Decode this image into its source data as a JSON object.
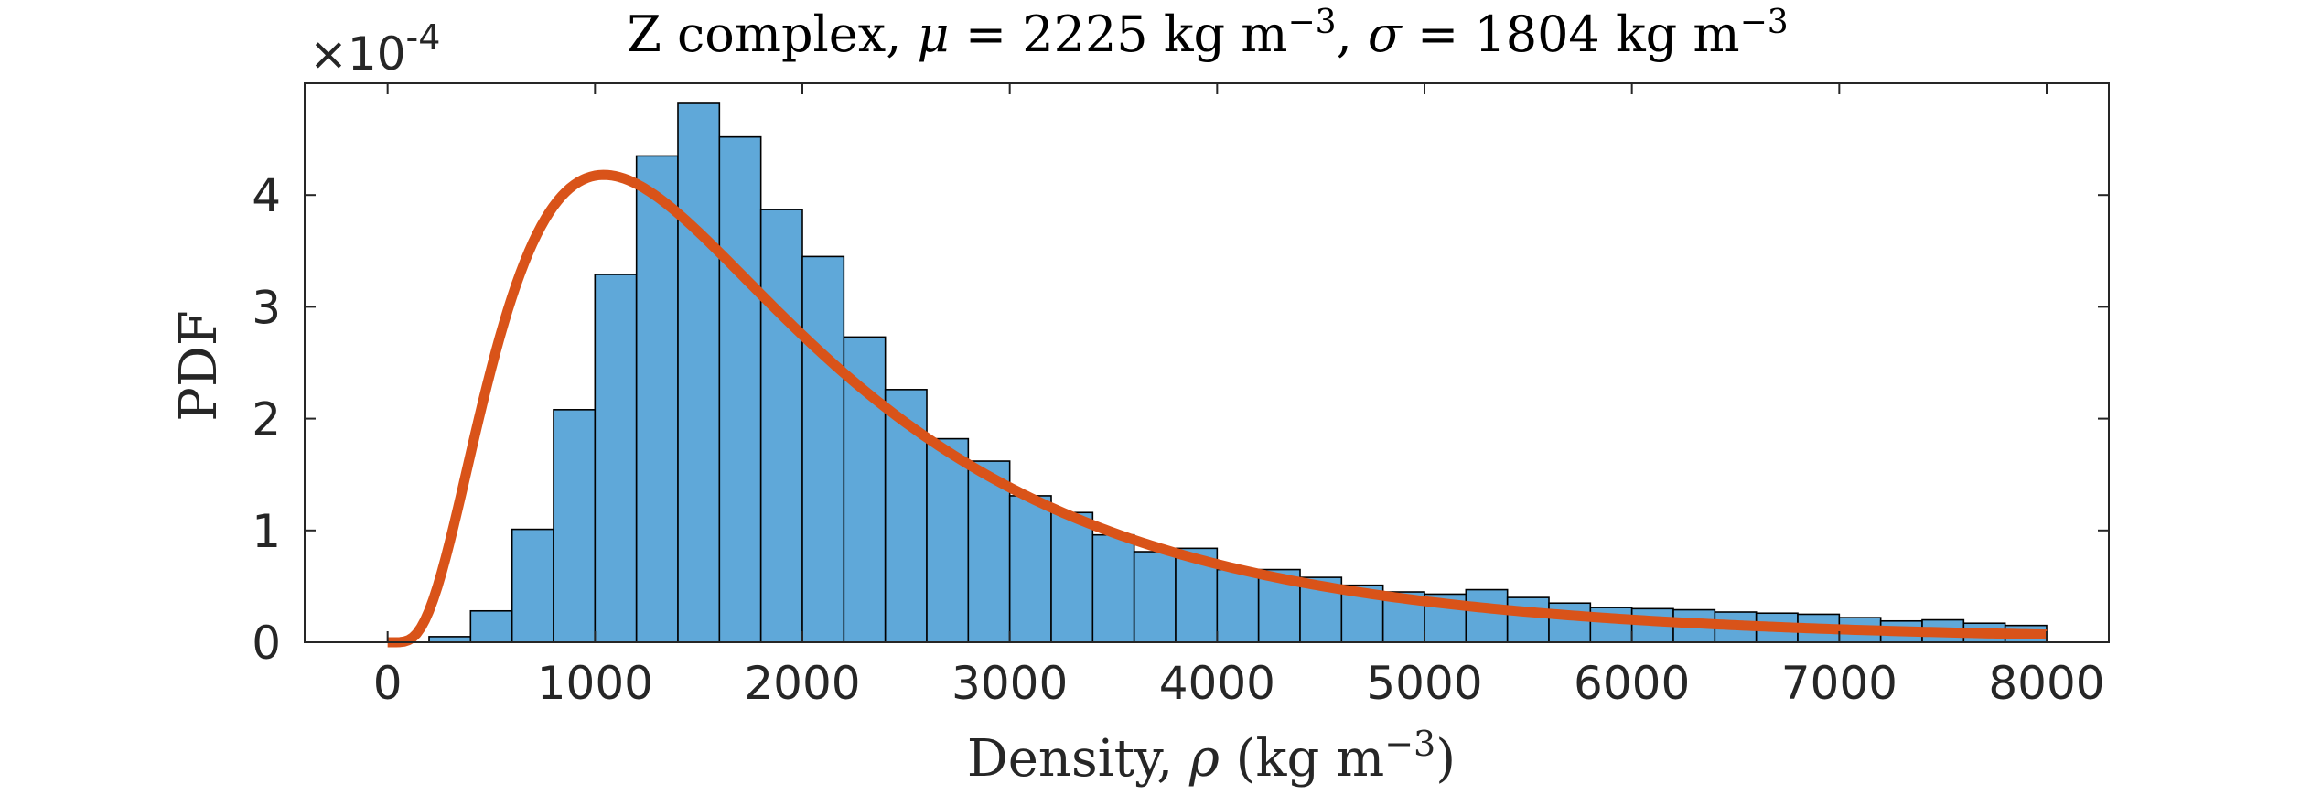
{
  "chart_data": {
    "type": "bar",
    "subtype": "histogram-with-fitted-pdf",
    "title": {
      "prefix": "Z complex, ",
      "mu_symbol": "μ",
      "mu_text": " = 2225 kg m",
      "mu_exp": "−3",
      "sep": ", ",
      "sigma_symbol": "σ",
      "sigma_text": " = 1804 kg m",
      "sigma_exp": "−3"
    },
    "xlabel": {
      "text": "Density, ",
      "symbol": "ρ",
      "unit": " (kg m",
      "unit_exp": "−3",
      "close": ")"
    },
    "ylabel": "PDF",
    "y_exponent": {
      "base": "×10",
      "power": "-4"
    },
    "xlim": [
      -400,
      8300
    ],
    "ylim": [
      0,
      5.0
    ],
    "x_ticks": [
      0,
      1000,
      2000,
      3000,
      4000,
      5000,
      6000,
      7000,
      8000
    ],
    "x_tick_labels": [
      "0",
      "1000",
      "2000",
      "3000",
      "4000",
      "5000",
      "6000",
      "7000",
      "8000"
    ],
    "y_ticks": [
      0,
      1,
      2,
      3,
      4
    ],
    "y_tick_labels": [
      "0",
      "1",
      "2",
      "3",
      "4"
    ],
    "bin_width": 200,
    "bin_starts": [
      0,
      200,
      400,
      600,
      800,
      1000,
      1200,
      1400,
      1600,
      1800,
      2000,
      2200,
      2400,
      2600,
      2800,
      3000,
      3200,
      3400,
      3600,
      3800,
      4000,
      4200,
      4400,
      4600,
      4800,
      5000,
      5200,
      5400,
      5600,
      5800,
      6000,
      6200,
      6400,
      6600,
      6800,
      7000,
      7200,
      7400,
      7600,
      7800
    ],
    "series": [
      {
        "name": "Histogram",
        "kind": "bars",
        "color": "#5FA8D9",
        "edge_color": "#000000",
        "values": [
          0.0,
          0.05,
          0.28,
          1.01,
          2.08,
          3.29,
          4.35,
          4.82,
          4.52,
          3.87,
          3.45,
          2.73,
          2.26,
          1.82,
          1.62,
          1.31,
          1.16,
          0.96,
          0.81,
          0.84,
          0.65,
          0.65,
          0.58,
          0.51,
          0.45,
          0.43,
          0.47,
          0.4,
          0.35,
          0.31,
          0.3,
          0.29,
          0.27,
          0.26,
          0.25,
          0.22,
          0.19,
          0.2,
          0.17,
          0.15
        ]
      },
      {
        "name": "Fitted PDF",
        "kind": "line",
        "color": "#D95319",
        "model": "lognormal",
        "mean": 2225,
        "std": 1804
      }
    ]
  }
}
